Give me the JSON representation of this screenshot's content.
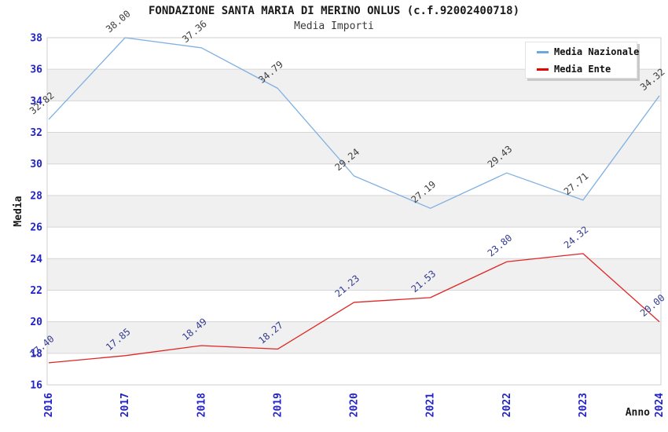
{
  "header": {
    "title": "FONDAZIONE SANTA MARIA DI MERINO ONLUS (c.f.92002400718)",
    "subtitle": "Media Importi"
  },
  "legend": {
    "items": [
      {
        "label": "Media Nazionale",
        "color": "#6aa8e0"
      },
      {
        "label": "Media Ente",
        "color": "#e60000"
      }
    ]
  },
  "chart_data": {
    "type": "line",
    "title": "FONDAZIONE SANTA MARIA DI MERINO ONLUS (c.f.92002400718)",
    "subtitle": "Media Importi",
    "xlabel": "Anno",
    "ylabel": "Media",
    "categories": [
      "2016",
      "2017",
      "2018",
      "2019",
      "2020",
      "2021",
      "2022",
      "2023",
      "2024"
    ],
    "series": [
      {
        "name": "Media Nazionale",
        "color": "#7fb0e2",
        "label_color": "#3d3d3d",
        "values": [
          32.82,
          38.0,
          37.36,
          34.79,
          29.24,
          27.19,
          29.43,
          27.71,
          34.32
        ]
      },
      {
        "name": "Media Ente",
        "color": "#e02525",
        "label_color": "#333a8f",
        "values": [
          17.4,
          17.85,
          18.49,
          18.27,
          21.23,
          21.53,
          23.8,
          24.32,
          20.0
        ]
      }
    ],
    "ylim": [
      16,
      38
    ],
    "ytick_step": 2,
    "label_decimals": 2,
    "grid": true,
    "legend_position": "top-right",
    "tick_color": "#2222cc",
    "grid_color": "#d6d6d6",
    "border_color": "#cfcfcf",
    "band_colors": [
      "#ffffff",
      "#f0f0f0"
    ],
    "axis_title_color": "#1a1a1a"
  }
}
